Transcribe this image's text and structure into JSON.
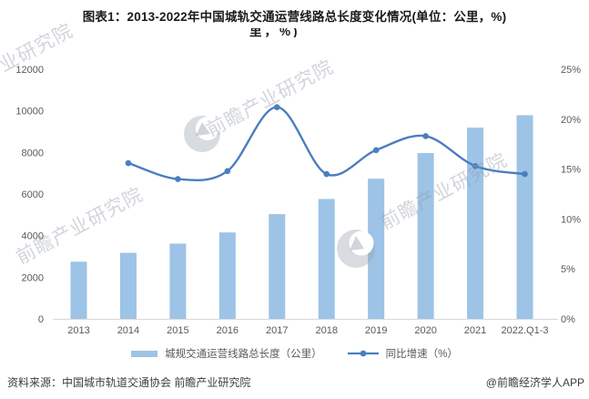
{
  "title": "图表1：2013-2022年中国城轨交通运营线路总长度变化情况(单位：公里，%)",
  "title_fragment": "里，%)",
  "source": "资料来源：中国城市轨道交通协会 前瞻产业研究院",
  "credit": "@前瞻经济学人APP",
  "watermark": {
    "text": "前瞻产业研究院",
    "dots": "· · · · · · · · · ·"
  },
  "colors": {
    "bar": "#9DC3E6",
    "line": "#4A7EBE",
    "axis_line": "#D9D9D9",
    "tick_label": "#595959",
    "title": "#1A1A1A",
    "source": "#3D3D3D",
    "watermark": "rgba(145,155,170,0.42)"
  },
  "legend": [
    {
      "label": "城规交通运营线路总长度（公里）",
      "type": "bar"
    },
    {
      "label": "同比增速（%）",
      "type": "line"
    }
  ],
  "chart_data": {
    "type": "bar+line",
    "title": "图表1：2013-2022年中国城轨交通运营线路总长度变化情况(单位：公里，%)",
    "categories": [
      "2013",
      "2014",
      "2015",
      "2016",
      "2017",
      "2018",
      "2019",
      "2020",
      "2021",
      "2022.Q1-3"
    ],
    "series": [
      {
        "name": "城规交通运营线路总长度（公里）",
        "type": "bar",
        "axis": "left",
        "values": [
          2746,
          3173,
          3618,
          4153,
          5033,
          5761,
          6736,
          7970,
          9192,
          9789
        ]
      },
      {
        "name": "同比增速（%）",
        "type": "line",
        "axis": "right",
        "values": [
          null,
          15.6,
          14.0,
          14.8,
          21.2,
          14.5,
          16.9,
          18.3,
          15.3,
          14.5
        ]
      }
    ],
    "ylim_left": [
      0,
      12000
    ],
    "ylim_right": [
      0,
      25
    ],
    "y_left_ticks": [
      0,
      2000,
      4000,
      6000,
      8000,
      10000,
      12000
    ],
    "y_right_ticks": [
      "0%",
      "5%",
      "10%",
      "15%",
      "20%",
      "25%"
    ],
    "grid": false,
    "legend_position": "bottom"
  }
}
